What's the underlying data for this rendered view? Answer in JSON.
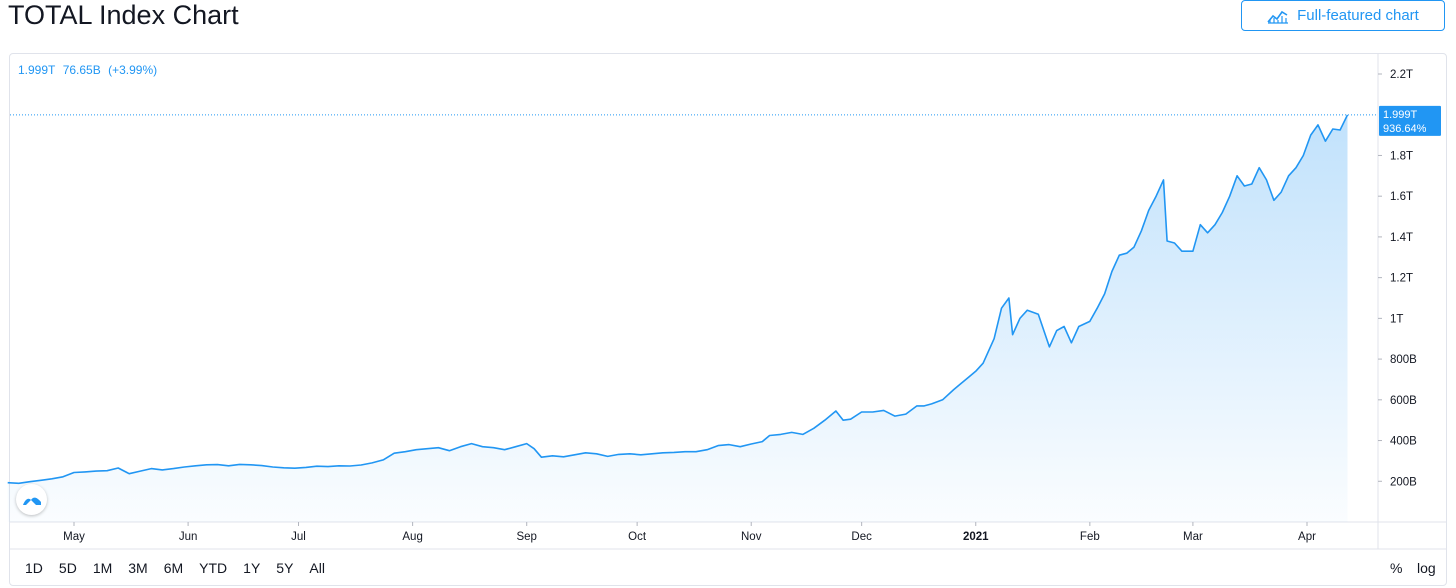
{
  "header": {
    "title": "TOTAL Index Chart",
    "full_button_label": "Full-featured chart"
  },
  "legend": {
    "value": "1.999T",
    "change": "76.65B",
    "change_pct": "(+3.99%)"
  },
  "last_price_label": {
    "value": "1.999T",
    "pct": "936.64%"
  },
  "toolbar": {
    "ranges": [
      "1D",
      "5D",
      "1M",
      "3M",
      "6M",
      "YTD",
      "1Y",
      "5Y",
      "All"
    ],
    "percent_label": "%",
    "log_label": "log"
  },
  "colors": {
    "line": "#2196f3",
    "text": "#131722",
    "grid": "#e0e3eb"
  },
  "icons": {
    "full_button": "chart-line-icon",
    "logo": "tradingview-logo-icon"
  },
  "chart_data": {
    "type": "area",
    "title": "TOTAL Index Chart",
    "xlabel": "",
    "ylabel": "",
    "x_range": [
      "2020-04-13",
      "2021-04-20"
    ],
    "ylim": [
      0,
      2300
    ],
    "y_unit": "B",
    "y_ticks": [
      {
        "value": 200,
        "label": "200B"
      },
      {
        "value": 400,
        "label": "400B"
      },
      {
        "value": 600,
        "label": "600B"
      },
      {
        "value": 800,
        "label": "800B"
      },
      {
        "value": 1000,
        "label": "1T"
      },
      {
        "value": 1200,
        "label": "1.2T"
      },
      {
        "value": 1400,
        "label": "1.4T"
      },
      {
        "value": 1600,
        "label": "1.6T"
      },
      {
        "value": 1800,
        "label": "1.8T"
      },
      {
        "value": 2200,
        "label": "2.2T"
      }
    ],
    "x_ticks": [
      {
        "date": "2020-05-01",
        "label": "May",
        "bold": false
      },
      {
        "date": "2020-06-01",
        "label": "Jun",
        "bold": false
      },
      {
        "date": "2020-07-01",
        "label": "Jul",
        "bold": false
      },
      {
        "date": "2020-08-01",
        "label": "Aug",
        "bold": false
      },
      {
        "date": "2020-09-01",
        "label": "Sep",
        "bold": false
      },
      {
        "date": "2020-10-01",
        "label": "Oct",
        "bold": false
      },
      {
        "date": "2020-11-01",
        "label": "Nov",
        "bold": false
      },
      {
        "date": "2020-12-01",
        "label": "Dec",
        "bold": false
      },
      {
        "date": "2021-01-01",
        "label": "2021",
        "bold": true
      },
      {
        "date": "2021-02-01",
        "label": "Feb",
        "bold": false
      },
      {
        "date": "2021-03-01",
        "label": "Mar",
        "bold": false
      },
      {
        "date": "2021-04-01",
        "label": "Apr",
        "bold": false
      }
    ],
    "last_value": 1999,
    "series": [
      {
        "points": [
          [
            "2020-04-13",
            193
          ],
          [
            "2020-04-16",
            190
          ],
          [
            "2020-04-19",
            198
          ],
          [
            "2020-04-22",
            205
          ],
          [
            "2020-04-25",
            212
          ],
          [
            "2020-04-28",
            222
          ],
          [
            "2020-05-01",
            243
          ],
          [
            "2020-05-04",
            246
          ],
          [
            "2020-05-07",
            250
          ],
          [
            "2020-05-10",
            252
          ],
          [
            "2020-05-13",
            265
          ],
          [
            "2020-05-16",
            237
          ],
          [
            "2020-05-19",
            250
          ],
          [
            "2020-05-22",
            262
          ],
          [
            "2020-05-25",
            256
          ],
          [
            "2020-05-28",
            262
          ],
          [
            "2020-05-31",
            270
          ],
          [
            "2020-06-03",
            276
          ],
          [
            "2020-06-06",
            281
          ],
          [
            "2020-06-09",
            282
          ],
          [
            "2020-06-12",
            276
          ],
          [
            "2020-06-15",
            283
          ],
          [
            "2020-06-18",
            281
          ],
          [
            "2020-06-21",
            277
          ],
          [
            "2020-06-24",
            270
          ],
          [
            "2020-06-27",
            266
          ],
          [
            "2020-06-30",
            264
          ],
          [
            "2020-07-03",
            268
          ],
          [
            "2020-07-06",
            274
          ],
          [
            "2020-07-09",
            272
          ],
          [
            "2020-07-12",
            276
          ],
          [
            "2020-07-15",
            275
          ],
          [
            "2020-07-18",
            280
          ],
          [
            "2020-07-21",
            290
          ],
          [
            "2020-07-24",
            305
          ],
          [
            "2020-07-27",
            338
          ],
          [
            "2020-07-30",
            345
          ],
          [
            "2020-08-02",
            355
          ],
          [
            "2020-08-05",
            360
          ],
          [
            "2020-08-08",
            365
          ],
          [
            "2020-08-11",
            350
          ],
          [
            "2020-08-14",
            370
          ],
          [
            "2020-08-17",
            385
          ],
          [
            "2020-08-20",
            370
          ],
          [
            "2020-08-23",
            365
          ],
          [
            "2020-08-26",
            355
          ],
          [
            "2020-08-29",
            370
          ],
          [
            "2020-09-01",
            385
          ],
          [
            "2020-09-03",
            360
          ],
          [
            "2020-09-05",
            318
          ],
          [
            "2020-09-08",
            325
          ],
          [
            "2020-09-11",
            320
          ],
          [
            "2020-09-14",
            330
          ],
          [
            "2020-09-17",
            340
          ],
          [
            "2020-09-20",
            335
          ],
          [
            "2020-09-23",
            322
          ],
          [
            "2020-09-26",
            332
          ],
          [
            "2020-09-29",
            335
          ],
          [
            "2020-10-02",
            330
          ],
          [
            "2020-10-05",
            335
          ],
          [
            "2020-10-08",
            340
          ],
          [
            "2020-10-11",
            342
          ],
          [
            "2020-10-14",
            345
          ],
          [
            "2020-10-17",
            345
          ],
          [
            "2020-10-20",
            355
          ],
          [
            "2020-10-23",
            375
          ],
          [
            "2020-10-26",
            380
          ],
          [
            "2020-10-29",
            370
          ],
          [
            "2020-11-01",
            383
          ],
          [
            "2020-11-04",
            395
          ],
          [
            "2020-11-06",
            425
          ],
          [
            "2020-11-09",
            430
          ],
          [
            "2020-11-12",
            440
          ],
          [
            "2020-11-15",
            430
          ],
          [
            "2020-11-18",
            460
          ],
          [
            "2020-11-21",
            500
          ],
          [
            "2020-11-24",
            545
          ],
          [
            "2020-11-26",
            500
          ],
          [
            "2020-11-28",
            505
          ],
          [
            "2020-12-01",
            540
          ],
          [
            "2020-12-04",
            540
          ],
          [
            "2020-12-07",
            548
          ],
          [
            "2020-12-10",
            520
          ],
          [
            "2020-12-13",
            530
          ],
          [
            "2020-12-16",
            570
          ],
          [
            "2020-12-18",
            570
          ],
          [
            "2020-12-20",
            580
          ],
          [
            "2020-12-23",
            600
          ],
          [
            "2020-12-26",
            650
          ],
          [
            "2020-12-28",
            680
          ],
          [
            "2020-12-30",
            710
          ],
          [
            "2021-01-01",
            740
          ],
          [
            "2021-01-03",
            780
          ],
          [
            "2021-01-06",
            900
          ],
          [
            "2021-01-08",
            1050
          ],
          [
            "2021-01-10",
            1100
          ],
          [
            "2021-01-11",
            920
          ],
          [
            "2021-01-13",
            1000
          ],
          [
            "2021-01-15",
            1040
          ],
          [
            "2021-01-18",
            1020
          ],
          [
            "2021-01-21",
            860
          ],
          [
            "2021-01-23",
            940
          ],
          [
            "2021-01-25",
            960
          ],
          [
            "2021-01-27",
            880
          ],
          [
            "2021-01-29",
            960
          ],
          [
            "2021-02-01",
            985
          ],
          [
            "2021-02-03",
            1050
          ],
          [
            "2021-02-05",
            1120
          ],
          [
            "2021-02-07",
            1230
          ],
          [
            "2021-02-09",
            1310
          ],
          [
            "2021-02-11",
            1320
          ],
          [
            "2021-02-13",
            1350
          ],
          [
            "2021-02-15",
            1430
          ],
          [
            "2021-02-17",
            1530
          ],
          [
            "2021-02-19",
            1600
          ],
          [
            "2021-02-21",
            1680
          ],
          [
            "2021-02-22",
            1380
          ],
          [
            "2021-02-24",
            1370
          ],
          [
            "2021-02-26",
            1330
          ],
          [
            "2021-03-01",
            1330
          ],
          [
            "2021-03-03",
            1460
          ],
          [
            "2021-03-05",
            1420
          ],
          [
            "2021-03-07",
            1460
          ],
          [
            "2021-03-09",
            1520
          ],
          [
            "2021-03-11",
            1600
          ],
          [
            "2021-03-13",
            1700
          ],
          [
            "2021-03-15",
            1650
          ],
          [
            "2021-03-17",
            1660
          ],
          [
            "2021-03-19",
            1740
          ],
          [
            "2021-03-21",
            1680
          ],
          [
            "2021-03-23",
            1580
          ],
          [
            "2021-03-25",
            1620
          ],
          [
            "2021-03-27",
            1700
          ],
          [
            "2021-03-29",
            1740
          ],
          [
            "2021-03-31",
            1800
          ],
          [
            "2021-04-02",
            1900
          ],
          [
            "2021-04-04",
            1950
          ],
          [
            "2021-04-06",
            1870
          ],
          [
            "2021-04-08",
            1930
          ],
          [
            "2021-04-10",
            1925
          ],
          [
            "2021-04-12",
            1999
          ]
        ]
      }
    ],
    "grid": false
  }
}
